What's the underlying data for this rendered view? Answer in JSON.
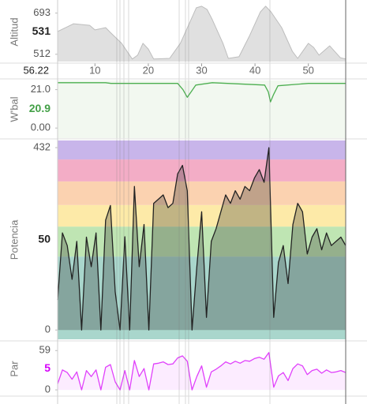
{
  "x_axis": {
    "xlim": [
      3,
      57
    ],
    "xticks": [
      10,
      20,
      30,
      40,
      50
    ],
    "cursor": 56.22
  },
  "chart_data": [
    {
      "type": "area",
      "ylabel": "Altitud",
      "current": 531,
      "color": "#bdbdbd",
      "ylim": [
        480,
        740
      ],
      "yticks": [
        512,
        693
      ],
      "x": [
        3,
        6,
        9,
        10,
        12,
        13,
        15,
        17,
        18,
        19,
        20,
        21,
        24,
        26,
        28,
        29,
        30,
        31,
        32,
        34,
        35,
        37,
        39,
        41,
        42,
        43,
        45,
        47,
        48,
        50,
        51,
        52,
        54,
        56,
        57
      ],
      "values": [
        612,
        646,
        639,
        619,
        629,
        605,
        560,
        491,
        508,
        560,
        535,
        491,
        494,
        560,
        664,
        716,
        723,
        709,
        664,
        560,
        494,
        501,
        594,
        698,
        723,
        698,
        629,
        525,
        494,
        560,
        542,
        508,
        549,
        497,
        491
      ]
    },
    {
      "type": "line",
      "ylabel": "W'bal",
      "current": 20.9,
      "color": "#4caf50",
      "ylim": [
        -5.5,
        26
      ],
      "yticks": [
        {
          "value": 21,
          "label": "21.0"
        },
        {
          "value": 0,
          "label": "0.00"
        }
      ],
      "x": [
        3,
        12,
        13,
        25.5,
        26.5,
        27.3,
        28.0,
        28.9,
        32,
        41.8,
        42.5,
        42.9,
        43.5,
        44.3,
        50,
        57
      ],
      "values": [
        24.8,
        24.8,
        24.4,
        24.4,
        21.0,
        16.8,
        19.7,
        23.5,
        24.8,
        23.5,
        19.7,
        14.3,
        18.5,
        23.1,
        24.4,
        24.4
      ]
    },
    {
      "type": "area",
      "ylabel": "Potencia",
      "current": 50,
      "color": "#222222",
      "ylim": [
        -22,
        449
      ],
      "yticks": [
        0,
        432
      ],
      "zones": [
        {
          "to": 174,
          "color": "#a9d6cc"
        },
        {
          "from": 174,
          "to": 245,
          "color": "#bfe5b3"
        },
        {
          "from": 245,
          "to": 296,
          "color": "#fdeaa8"
        },
        {
          "from": 296,
          "to": 352,
          "color": "#fbd2b0"
        },
        {
          "from": 352,
          "to": 404,
          "color": "#f3adc6"
        },
        {
          "from": 404,
          "color": "#c8b5ea"
        }
      ],
      "x": [
        3.0,
        3.9,
        4.8,
        5.7,
        6.6,
        7.5,
        8.4,
        9.3,
        10.2,
        11.1,
        12.0,
        12.9,
        13.8,
        14.7,
        15.6,
        16.5,
        17.4,
        18.3,
        19.2,
        20.1,
        21.0,
        21.9,
        22.8,
        23.7,
        24.6,
        25.5,
        26.4,
        27.3,
        28.2,
        29.1,
        30.0,
        30.9,
        31.8,
        32.7,
        33.6,
        34.5,
        35.4,
        36.3,
        37.2,
        38.1,
        39.0,
        39.9,
        40.8,
        41.7,
        42.6,
        43.5,
        44.4,
        45.3,
        46.2,
        47.1,
        48.0,
        48.9,
        49.8,
        50.7,
        51.6,
        52.5,
        53.4,
        54.3,
        55.2,
        56.1,
        57.0
      ],
      "values": [
        71,
        230,
        200,
        120,
        210,
        0,
        220,
        150,
        230,
        0,
        260,
        295,
        90,
        0,
        221,
        0,
        340,
        150,
        250,
        0,
        300,
        310,
        320,
        290,
        300,
        370,
        390,
        330,
        0,
        150,
        280,
        30,
        210,
        240,
        280,
        320,
        300,
        330,
        310,
        340,
        330,
        360,
        380,
        350,
        432,
        30,
        160,
        200,
        110,
        250,
        300,
        280,
        180,
        220,
        240,
        190,
        230,
        200,
        210,
        220,
        200
      ]
    },
    {
      "type": "area",
      "ylabel": "Par",
      "current": 5,
      "color": "#e040fb",
      "ylim": [
        -7,
        70
      ],
      "yticks": [
        0,
        59
      ],
      "x": [
        3.0,
        3.9,
        4.8,
        5.7,
        6.6,
        7.5,
        8.4,
        9.3,
        10.2,
        11.1,
        12.0,
        12.9,
        13.8,
        14.7,
        15.6,
        16.5,
        17.4,
        18.3,
        19.2,
        20.1,
        21.0,
        21.9,
        22.8,
        23.7,
        24.6,
        25.5,
        26.4,
        27.3,
        28.2,
        29.1,
        30.0,
        30.9,
        31.8,
        32.7,
        33.6,
        34.5,
        35.4,
        36.3,
        37.2,
        38.1,
        39.0,
        39.9,
        40.8,
        41.7,
        42.6,
        43.5,
        44.4,
        45.3,
        46.2,
        47.1,
        48.0,
        48.9,
        49.8,
        50.7,
        51.6,
        52.5,
        53.4,
        54.3,
        55.2,
        56.1,
        57.0
      ],
      "values": [
        9,
        30,
        26,
        16,
        27,
        0,
        29,
        20,
        30,
        0,
        34,
        38,
        12,
        0,
        29,
        0,
        44,
        20,
        32,
        0,
        39,
        40,
        42,
        38,
        39,
        48,
        51,
        43,
        0,
        20,
        36,
        4,
        27,
        31,
        36,
        42,
        39,
        43,
        40,
        44,
        43,
        47,
        49,
        46,
        56,
        4,
        21,
        26,
        14,
        32,
        39,
        36,
        23,
        29,
        31,
        25,
        30,
        26,
        27,
        29,
        26
      ]
    }
  ]
}
